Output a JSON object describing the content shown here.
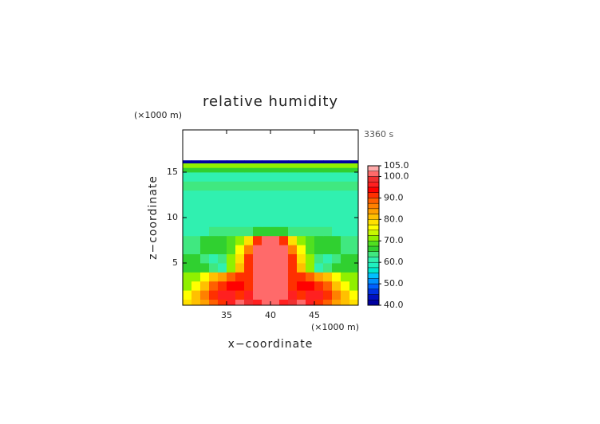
{
  "chart_data": {
    "type": "contour",
    "title": "relative humidity",
    "time_label": "3360 s",
    "xlabel": "x−coordinate",
    "ylabel": "z−coordinate",
    "x_unit": "(×1000 m)",
    "y_unit": "(×1000 m)",
    "xlim": [
      30,
      50
    ],
    "ylim": [
      0.35,
      19.65
    ],
    "xticks": [
      35,
      40,
      45
    ],
    "yticks": [
      5,
      10,
      15
    ],
    "x": [
      30,
      31,
      32,
      33,
      34,
      35,
      36,
      37,
      38,
      39,
      40,
      41,
      42,
      43,
      44,
      45,
      46,
      47,
      48,
      49,
      50
    ],
    "y": [
      0,
      1,
      2,
      3,
      4,
      5,
      6,
      7,
      8,
      9,
      10,
      11,
      12,
      13,
      14,
      15,
      15.5,
      16,
      16.3
    ],
    "z": [
      [
        78,
        80,
        84,
        88,
        92,
        96,
        102,
        98,
        97,
        101,
        102,
        97,
        98,
        102,
        96,
        92,
        88,
        84,
        80,
        78
      ],
      [
        76,
        80,
        86,
        92,
        95,
        97,
        92,
        96,
        101,
        102,
        102,
        101,
        96,
        92,
        97,
        95,
        92,
        86,
        80,
        76
      ],
      [
        72,
        76,
        82,
        88,
        92,
        94,
        93,
        92,
        101,
        102,
        102,
        101,
        92,
        93,
        94,
        92,
        88,
        82,
        76,
        72
      ],
      [
        70,
        72,
        75,
        80,
        84,
        88,
        90,
        90,
        101,
        102,
        102,
        101,
        90,
        90,
        88,
        84,
        80,
        75,
        72,
        70
      ],
      [
        67,
        67,
        66,
        64,
        62,
        72,
        80,
        92,
        101,
        102,
        102,
        101,
        92,
        80,
        72,
        62,
        64,
        66,
        67,
        67
      ],
      [
        66,
        66,
        64,
        62,
        64,
        70,
        78,
        90,
        101,
        102,
        102,
        101,
        90,
        78,
        70,
        64,
        62,
        64,
        66,
        66
      ],
      [
        64,
        64,
        65,
        66,
        67,
        69,
        75,
        85,
        101,
        102,
        102,
        101,
        85,
        75,
        69,
        67,
        66,
        65,
        64,
        64
      ],
      [
        63,
        64,
        65,
        66,
        67,
        68,
        70,
        78,
        92,
        102,
        102,
        92,
        78,
        70,
        68,
        67,
        66,
        65,
        64,
        63
      ],
      [
        62,
        62,
        62,
        63,
        63,
        63,
        64,
        64,
        65,
        66,
        66,
        65,
        64,
        64,
        63,
        63,
        63,
        62,
        62,
        62
      ],
      [
        61,
        61,
        61,
        61,
        61,
        61,
        61,
        61,
        61,
        61,
        61,
        61,
        61,
        61,
        61,
        61,
        61,
        61,
        61,
        61
      ],
      [
        60,
        60,
        60,
        60,
        60,
        60,
        60,
        60,
        60,
        60,
        60,
        60,
        60,
        60,
        60,
        60,
        60,
        60,
        60,
        60
      ],
      [
        60,
        60,
        60,
        60,
        60,
        60,
        60,
        60,
        60,
        60,
        60,
        60,
        60,
        60,
        60,
        60,
        60,
        60,
        60,
        60
      ],
      [
        60,
        60,
        60,
        60,
        60,
        60,
        60,
        60,
        60,
        60,
        60,
        60,
        60,
        60,
        60,
        60,
        60,
        60,
        60,
        60
      ],
      [
        64,
        64,
        64,
        64,
        64,
        64,
        64,
        64,
        64,
        64,
        64,
        64,
        64,
        64,
        64,
        64,
        64,
        64,
        64,
        64
      ],
      [
        60,
        60,
        60,
        60,
        60,
        60,
        60,
        60,
        60,
        60,
        60,
        60,
        60,
        60,
        60,
        60,
        60,
        60,
        60,
        60
      ],
      [
        66,
        66,
        66,
        66,
        66,
        66,
        66,
        66,
        66,
        66,
        66,
        66,
        66,
        66,
        66,
        66,
        66,
        66,
        66,
        66
      ],
      [
        72,
        72,
        72,
        72,
        72,
        72,
        72,
        72,
        72,
        72,
        72,
        72,
        72,
        72,
        72,
        72,
        72,
        72,
        72,
        72
      ],
      [
        42,
        42,
        42,
        42,
        42,
        42,
        42,
        42,
        42,
        42,
        42,
        42,
        42,
        42,
        42,
        42,
        42,
        42,
        42,
        42
      ]
    ],
    "levels": [
      40,
      42.5,
      45,
      47.5,
      50,
      52.5,
      55,
      57.5,
      60,
      62.5,
      65,
      67.5,
      70,
      72.5,
      75,
      77.5,
      80,
      82.5,
      85,
      87.5,
      90,
      92.5,
      95,
      97.5,
      100,
      102.5,
      105
    ],
    "colors": [
      "#0000a0",
      "#0010c0",
      "#0030e0",
      "#0060ff",
      "#0090ff",
      "#00c0ff",
      "#00e8d0",
      "#20f0c0",
      "#30f0b0",
      "#40e880",
      "#30d030",
      "#50e020",
      "#90f000",
      "#c8f800",
      "#ffff00",
      "#ffe000",
      "#ffc000",
      "#ffa000",
      "#ff8000",
      "#ff6000",
      "#ff3000",
      "#ff0000",
      "#ff2020",
      "#f03030",
      "#ff6a6a",
      "#ffaaaa"
    ],
    "colorbar_ticks": [
      {
        "value": 40,
        "label": "40.0"
      },
      {
        "value": 50,
        "label": "50.0"
      },
      {
        "value": 60,
        "label": "60.0"
      },
      {
        "value": 70,
        "label": "70.0"
      },
      {
        "value": 80,
        "label": "80.0"
      },
      {
        "value": 90,
        "label": "90.0"
      },
      {
        "value": 100,
        "label": "100.0"
      },
      {
        "value": 105,
        "label": "105.0"
      }
    ]
  }
}
